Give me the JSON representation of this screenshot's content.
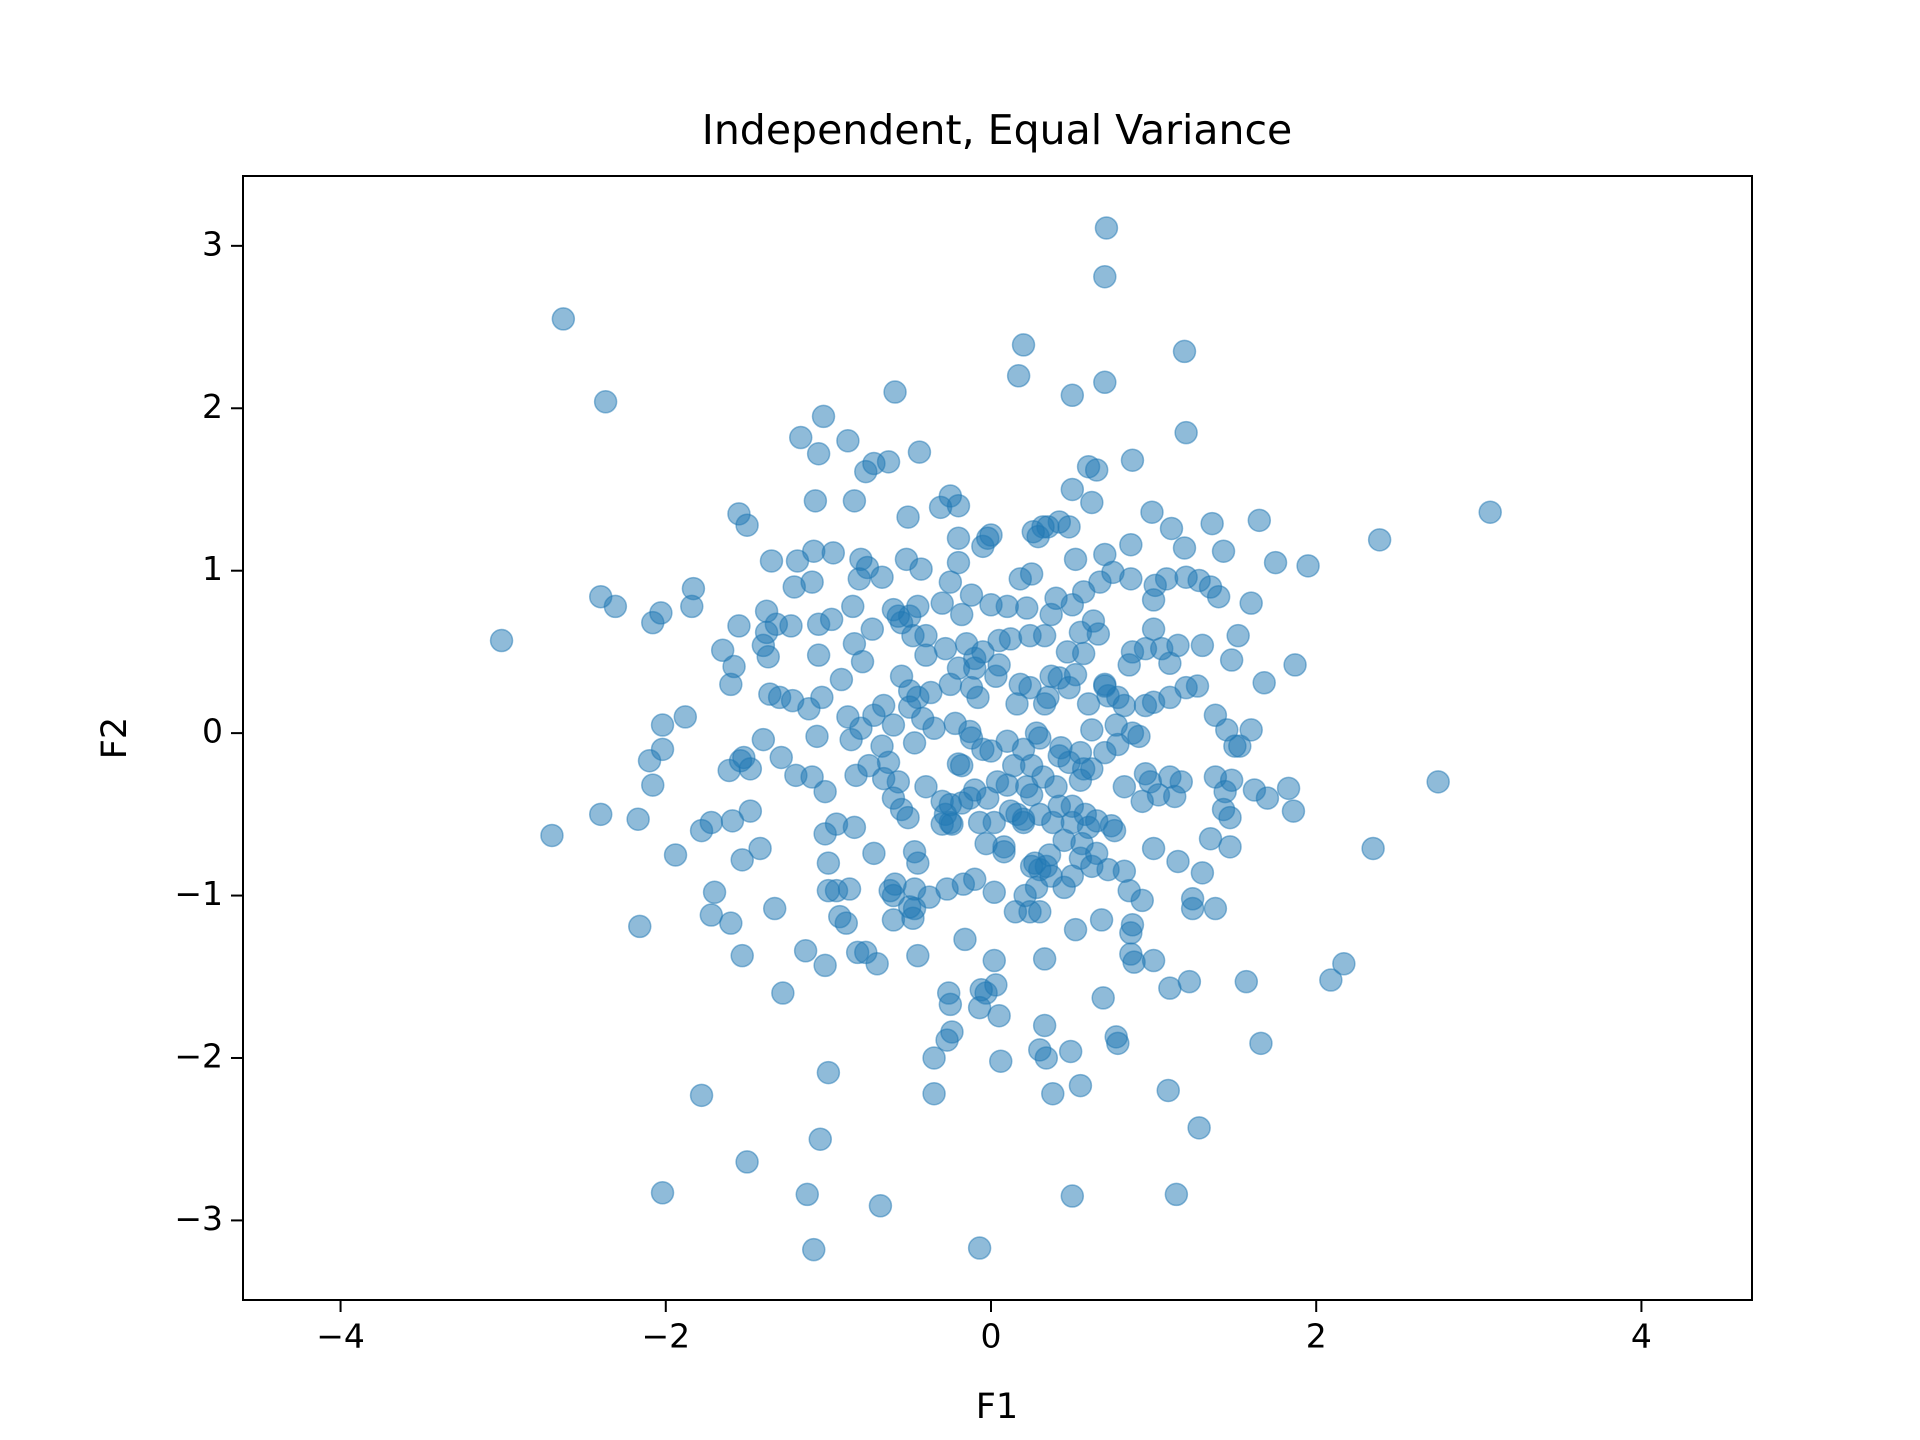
{
  "chart_data": {
    "type": "scatter",
    "title": "Independent, Equal Variance",
    "x_label": "F1",
    "y_label": "F2",
    "color": "#1f77b4",
    "alpha": 0.5,
    "xlim": [
      -4.6,
      4.68
    ],
    "ylim": [
      -3.49,
      3.43
    ],
    "xticks": [
      {
        "value": -4,
        "label": "−4"
      },
      {
        "value": -2,
        "label": "−2"
      },
      0,
      2,
      4
    ],
    "yticks": [
      {
        "value": -3,
        "label": "−3"
      },
      {
        "value": -2,
        "label": "−2"
      },
      {
        "value": -1,
        "label": "−1"
      },
      0,
      1,
      2,
      3
    ],
    "x": [
      -2.63,
      -2.37,
      -3.01,
      -2.7,
      0.71,
      0.7,
      0.2,
      0.17,
      0.5,
      0.7,
      1.19,
      1.2,
      -0.59,
      -1.17,
      -1.03,
      -1.06,
      -0.88,
      -0.44,
      -0.77,
      -0.72,
      -0.63,
      0.6,
      0.65,
      0.87,
      3.07,
      2.39,
      1.95,
      1.75,
      1.87,
      2.75,
      2.35,
      2.17,
      2.09,
      1.66,
      1.57,
      1.28,
      1.14,
      1.09,
      0.5,
      -0.07,
      -0.68,
      -1.09,
      -1.13,
      -1.05,
      -1.5,
      -2.02,
      -1.78,
      -1.0,
      -0.35,
      -0.35,
      -2.16,
      -2.17,
      -2.4,
      -1.94,
      -2.08,
      -2.02,
      -2.1,
      -2.02,
      -1.88,
      -2.4,
      -2.31,
      -2.08,
      -2.03,
      -1.83,
      -1.84,
      -1.55,
      -1.5,
      -1.08,
      -0.84,
      -0.25,
      -0.31,
      -0.2,
      0.3,
      0.34,
      0.38,
      0.55,
      0.49,
      0.06,
      0.05,
      0.33,
      -0.24,
      -0.27,
      -0.26,
      -0.25,
      -0.07,
      -0.03,
      0.03,
      0.02,
      -0.16,
      -0.06,
      0.77,
      0.78,
      0.69,
      0.33,
      0.52,
      0.68,
      0.86,
      0.88,
      0.86,
      0.87,
      1.0,
      1.1,
      1.22,
      1.24,
      1.24,
      1.38,
      1.3,
      1.35,
      1.47,
      1.15,
      1.0,
      -1.28,
      -1.14,
      -1.53,
      -1.6,
      -1.72,
      -1.7,
      -1.33,
      -0.82,
      -0.77,
      -0.7,
      -1.02,
      -0.93,
      -0.89,
      -0.95,
      -1.0,
      -0.87,
      -0.72,
      -0.6,
      -0.48,
      -0.45,
      -0.59,
      -0.6,
      -0.47,
      -0.38,
      -0.27,
      -0.1,
      -0.17,
      0.02,
      0.27,
      0.3,
      0.37,
      0.5,
      0.45,
      0.15,
      0.24,
      0.3,
      0.21,
      0.28,
      0.72,
      0.82,
      0.85,
      0.93,
      -1.59,
      -1.78,
      -1.72,
      -1.48,
      -1.42,
      -1.53,
      -1.61,
      -1.52,
      -1.54,
      -1.48,
      -1.29,
      -1.4,
      -1.2,
      -1.1,
      -1.02,
      -1.02,
      -0.95,
      -0.84,
      -1.0,
      -0.83,
      -0.75,
      -0.86,
      -0.8,
      -0.88,
      -1.07,
      -1.12,
      -1.04,
      -1.3,
      -1.36,
      -1.22,
      -1.6,
      -1.58,
      -1.65,
      -1.55,
      -1.4,
      -1.38,
      -1.38,
      -1.32,
      -1.23,
      -1.37,
      -1.06,
      -0.98,
      -0.85,
      -0.84,
      -0.92,
      -1.06,
      -0.73,
      -0.79,
      -1.35,
      -1.19,
      -1.21,
      -1.1,
      -1.09,
      -0.97,
      -0.8,
      -0.76,
      -0.81,
      -0.67,
      -0.52,
      -0.43,
      -0.51,
      -0.57,
      -0.5,
      -0.45,
      -0.4,
      -0.5,
      -0.55,
      -0.45,
      -0.5,
      -0.42,
      -0.66,
      -0.72,
      -0.6,
      -0.67,
      -0.63,
      -0.57,
      -0.47,
      -0.66,
      -0.6,
      -0.55,
      -0.51,
      -0.4,
      -0.3,
      -0.28,
      -0.24,
      -0.2,
      -0.12,
      -0.05,
      0,
      -0.1,
      -0.02,
      -0.07,
      0.04,
      0.1,
      0.12,
      0.16,
      0.2,
      0.25,
      0.3,
      0.38,
      0.45,
      0.56,
      0.65,
      0.76,
      0.6,
      0.5,
      0.4,
      0.55,
      0.62,
      0.7,
      0.78,
      0.82,
      0.95,
      0.98,
      1.1,
      1.17,
      1.13,
      1.03,
      0.93,
      1.38,
      1.44,
      1.43,
      1.47,
      1.48,
      1.62,
      1.7,
      1.83,
      1.86,
      1.6,
      1.45,
      1.5,
      1.53,
      1.38,
      1.6,
      1.52,
      1.48,
      1.4,
      1.35,
      1.28,
      1.2,
      1.08,
      1.01,
      1,
      1,
      0.95,
      0.87,
      0.85,
      1.05,
      1.15,
      1.3,
      1.2,
      1.27,
      1.1,
      1.1,
      1,
      0.95,
      0.82,
      0.78,
      0.72,
      0.7,
      0.77,
      0.87,
      0.91,
      0.62,
      0.55,
      0.48,
      0.43,
      1.68,
      1.65,
      1.43,
      1.36,
      1.19,
      1.11,
      0.99,
      0.86,
      0.75,
      0.86,
      0.7,
      0.67,
      0.57,
      0.5,
      0.52,
      0.48,
      0.5,
      0.42,
      0.35,
      0.32,
      0.26,
      0.29,
      0.62,
      0.63,
      0.66,
      0.55,
      0.47,
      0.37,
      0.42,
      0.35,
      0.33,
      0.24,
      0.18,
      0.16,
      0.12,
      0.24,
      0.25,
      0.18,
      0.4,
      0.37,
      0.33,
      0.22,
      0.1,
      0,
      0.05,
      0.05,
      0.03,
      -0.05,
      -0.1,
      -0.1,
      -0.12,
      -0.08,
      -0.15,
      -0.2,
      -0.25,
      -0.28,
      -0.18,
      -0.12,
      -0.25,
      -0.2,
      -0.2,
      -0.05,
      0,
      -0.02,
      -0.3,
      -0.4,
      -0.48,
      -0.55,
      -0.6,
      -0.37,
      -0.35,
      -0.22,
      -0.13,
      -0.18,
      0.1,
      0.2,
      0.3,
      0.28,
      0.14,
      0.25,
      0.32,
      0.42,
      0.57,
      0.7,
      0.6,
      0.57,
      0.52,
      0.48,
      -0.25,
      -0.18,
      -0.13,
      0.02,
      0.08,
      0.08,
      -0.03,
      0.2,
      0.22,
      0.42,
      0.5,
      0.58,
      0.65,
      0.55,
      0.62,
      0.74,
      0.36,
      0.34,
      0.25,
      -0.45,
      -0.47,
      -0.47,
      -0.5,
      -0.62,
      -0.25,
      -0.3
    ],
    "values": [
      2.55,
      2.04,
      0.57,
      -0.63,
      3.11,
      2.81,
      2.39,
      2.2,
      2.08,
      2.16,
      2.35,
      1.85,
      2.1,
      1.82,
      1.95,
      1.72,
      1.8,
      1.73,
      1.61,
      1.66,
      1.67,
      1.64,
      1.62,
      1.68,
      1.36,
      1.19,
      1.03,
      1.05,
      0.42,
      -0.3,
      -0.71,
      -1.42,
      -1.52,
      -1.91,
      -1.53,
      -2.43,
      -2.84,
      -2.2,
      -2.85,
      -3.17,
      -2.91,
      -3.18,
      -2.84,
      -2.5,
      -2.64,
      -2.83,
      -2.23,
      -2.09,
      -2.22,
      -2.0,
      -1.19,
      -0.53,
      -0.5,
      -0.75,
      -0.32,
      -0.1,
      -0.17,
      0.05,
      0.1,
      0.84,
      0.78,
      0.68,
      0.74,
      0.89,
      0.78,
      1.35,
      1.28,
      1.43,
      1.43,
      1.46,
      1.39,
      1.4,
      -1.95,
      -2.0,
      -2.22,
      -2.17,
      -1.96,
      -2.02,
      -1.74,
      -1.8,
      -1.84,
      -1.89,
      -1.6,
      -1.67,
      -1.69,
      -1.6,
      -1.55,
      -1.4,
      -1.27,
      -1.58,
      -1.87,
      -1.91,
      -1.63,
      -1.39,
      -1.21,
      -1.15,
      -1.36,
      -1.41,
      -1.23,
      -1.18,
      -1.4,
      -1.57,
      -1.53,
      -1.08,
      -1.02,
      -1.08,
      -0.86,
      -0.65,
      -0.7,
      -0.79,
      -0.71,
      -1.6,
      -1.34,
      -1.37,
      -1.17,
      -1.12,
      -0.98,
      -1.08,
      -1.35,
      -1.35,
      -1.42,
      -1.43,
      -1.13,
      -1.17,
      -0.97,
      -0.97,
      -0.96,
      -0.74,
      -1.15,
      -1.14,
      -1.37,
      -0.93,
      -1.0,
      -0.96,
      -1.01,
      -0.96,
      -0.9,
      -0.93,
      -0.98,
      -0.8,
      -0.84,
      -0.88,
      -0.88,
      -0.95,
      -1.1,
      -1.1,
      -1.1,
      -1.0,
      -0.95,
      -0.84,
      -0.85,
      -0.97,
      -1.03,
      -0.54,
      -0.6,
      -0.55,
      -0.48,
      -0.71,
      -0.78,
      -0.23,
      -0.15,
      -0.17,
      -0.22,
      -0.15,
      -0.04,
      -0.26,
      -0.27,
      -0.36,
      -0.62,
      -0.56,
      -0.58,
      -0.8,
      -0.26,
      -0.2,
      -0.04,
      0.03,
      0.1,
      -0.02,
      0.15,
      0.22,
      0.22,
      0.24,
      0.2,
      0.3,
      0.41,
      0.51,
      0.66,
      0.54,
      0.62,
      0.75,
      0.67,
      0.66,
      0.47,
      0.67,
      0.7,
      0.78,
      0.55,
      0.33,
      0.48,
      0.64,
      0.44,
      1.06,
      1.06,
      0.9,
      0.93,
      1.12,
      1.11,
      1.07,
      1.02,
      0.95,
      0.96,
      1.07,
      1.01,
      1.33,
      0.72,
      0.72,
      0.78,
      0.48,
      0.26,
      0.35,
      0.22,
      0.16,
      0.09,
      0.17,
      0.11,
      0.05,
      -0.08,
      -0.18,
      -0.3,
      -0.06,
      -0.28,
      -0.4,
      -0.47,
      -0.52,
      -0.33,
      -0.42,
      -0.5,
      -0.56,
      -0.19,
      -0.03,
      -0.1,
      -0.11,
      -0.35,
      -0.4,
      -0.55,
      -0.3,
      -0.32,
      -0.48,
      -0.5,
      -0.55,
      -0.38,
      -0.5,
      -0.55,
      -0.66,
      -0.68,
      -0.74,
      -0.6,
      -0.58,
      -0.45,
      -0.33,
      -0.29,
      -0.22,
      -0.12,
      -0.07,
      -0.33,
      -0.25,
      -0.3,
      -0.27,
      -0.3,
      -0.39,
      -0.38,
      -0.42,
      -0.27,
      -0.36,
      -0.47,
      -0.52,
      -0.29,
      -0.35,
      -0.4,
      -0.34,
      -0.48,
      0.02,
      0.02,
      -0.08,
      -0.08,
      0.11,
      0.8,
      0.6,
      0.45,
      0.84,
      0.9,
      0.94,
      0.96,
      0.95,
      0.91,
      0.82,
      0.64,
      0.52,
      0.5,
      0.42,
      0.52,
      0.54,
      0.54,
      0.28,
      0.29,
      0.43,
      0.22,
      0.19,
      0.17,
      0.17,
      0.22,
      0.23,
      0.29,
      0.05,
      0,
      -0.02,
      0.02,
      -0.12,
      -0.18,
      -0.09,
      0.31,
      1.31,
      1.12,
      1.29,
      1.14,
      1.26,
      1.36,
      1.16,
      0.99,
      0.95,
      1.1,
      0.93,
      0.87,
      0.79,
      1.07,
      1.27,
      1.5,
      1.3,
      1.27,
      1.27,
      1.24,
      1.21,
      1.42,
      0.69,
      0.61,
      0.62,
      0.5,
      0.35,
      0.34,
      0.22,
      0.18,
      0.28,
      0.3,
      0.18,
      0.58,
      0.6,
      0.98,
      0.95,
      0.83,
      0.73,
      0.6,
      0.77,
      0.78,
      0.79,
      0.57,
      0.42,
      0.35,
      0.5,
      0.46,
      0.4,
      0.28,
      0.22,
      0.55,
      0.4,
      0.3,
      0.52,
      0.73,
      0.85,
      0.93,
      1.05,
      1.2,
      1.15,
      1.22,
      1.2,
      0.8,
      0.6,
      0.6,
      0.68,
      0.76,
      0.25,
      0.03,
      0.06,
      0.01,
      -0.2,
      -0.05,
      -0.1,
      -0.03,
      0,
      -0.2,
      -0.2,
      -0.27,
      -0.14,
      -0.22,
      0.3,
      0.18,
      0.49,
      0.36,
      0.28,
      -0.55,
      -0.43,
      -0.4,
      -0.55,
      -0.7,
      -0.73,
      -0.68,
      -0.53,
      -0.33,
      -0.45,
      -0.55,
      -0.5,
      -0.54,
      -0.77,
      -0.82,
      -0.57,
      -0.75,
      -0.82,
      -0.82,
      -0.8,
      -0.73,
      -1.08,
      -1.07,
      -0.97,
      -0.44,
      -0.56
    ]
  }
}
